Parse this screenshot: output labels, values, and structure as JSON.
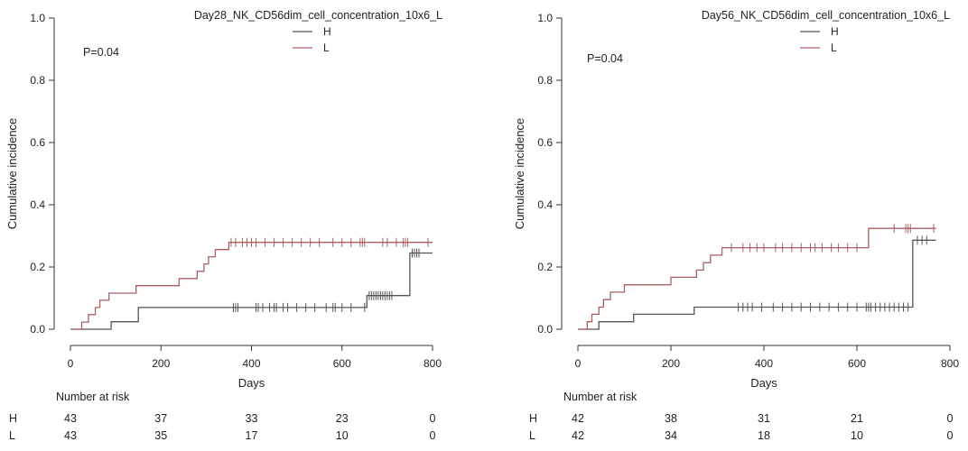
{
  "chart_data": [
    {
      "type": "line",
      "title": "Day28_NK_CD56dim_cell_concentration_10x6_L",
      "xlabel": "Days",
      "ylabel": "Cumulative incidence",
      "xlim": [
        0,
        800
      ],
      "ylim": [
        0,
        1.0
      ],
      "xticks": [
        0,
        200,
        400,
        600,
        800
      ],
      "yticks": [
        0.0,
        0.2,
        0.4,
        0.6,
        0.8,
        1.0
      ],
      "xtick_labels": [
        "0",
        "200",
        "400",
        "600",
        "800"
      ],
      "ytick_labels": [
        "0.0",
        "0.2",
        "0.4",
        "0.6",
        "0.8",
        "1.0"
      ],
      "p_value": "P=0.04",
      "legend": [
        "H",
        "L"
      ],
      "series": [
        {
          "name": "H",
          "color": "#555555",
          "steps": [
            [
              0,
              0
            ],
            [
              90,
              0
            ],
            [
              90,
              0.024
            ],
            [
              150,
              0.024
            ],
            [
              150,
              0.07
            ],
            [
              655,
              0.07
            ],
            [
              655,
              0.108
            ],
            [
              750,
              0.108
            ],
            [
              750,
              0.245
            ],
            [
              800,
              0.245
            ]
          ],
          "censor": [
            360,
            365,
            370,
            410,
            415,
            425,
            440,
            450,
            455,
            470,
            480,
            500,
            520,
            540,
            565,
            580,
            585,
            600,
            620,
            650,
            660,
            665,
            670,
            675,
            680,
            685,
            690,
            695,
            700,
            705,
            710,
            755,
            760,
            765,
            770
          ]
        },
        {
          "name": "L",
          "color": "#a86060",
          "steps": [
            [
              0,
              0
            ],
            [
              25,
              0
            ],
            [
              25,
              0.023
            ],
            [
              40,
              0.023
            ],
            [
              40,
              0.047
            ],
            [
              55,
              0.047
            ],
            [
              55,
              0.07
            ],
            [
              65,
              0.07
            ],
            [
              65,
              0.093
            ],
            [
              85,
              0.093
            ],
            [
              85,
              0.116
            ],
            [
              145,
              0.116
            ],
            [
              145,
              0.14
            ],
            [
              240,
              0.14
            ],
            [
              240,
              0.163
            ],
            [
              280,
              0.163
            ],
            [
              280,
              0.186
            ],
            [
              295,
              0.186
            ],
            [
              295,
              0.21
            ],
            [
              305,
              0.21
            ],
            [
              305,
              0.233
            ],
            [
              320,
              0.233
            ],
            [
              320,
              0.256
            ],
            [
              350,
              0.256
            ],
            [
              350,
              0.279
            ],
            [
              800,
              0.279
            ]
          ],
          "censor": [
            355,
            365,
            380,
            390,
            400,
            410,
            430,
            450,
            470,
            490,
            510,
            530,
            550,
            580,
            600,
            620,
            640,
            645,
            650,
            690,
            700,
            720,
            735,
            740,
            745,
            790
          ]
        }
      ],
      "risk_table": {
        "label": "Number at risk",
        "times": [
          0,
          200,
          400,
          600,
          800
        ],
        "rows": [
          {
            "group": "H",
            "counts": [
              "43",
              "37",
              "33",
              "23",
              "0"
            ]
          },
          {
            "group": "L",
            "counts": [
              "43",
              "35",
              "17",
              "10",
              "0"
            ]
          }
        ]
      }
    },
    {
      "type": "line",
      "title": "Day56_NK_CD56dim_cell_concentration_10x6_L",
      "xlabel": "Days",
      "ylabel": "Cumulative incidence",
      "xlim": [
        0,
        800
      ],
      "ylim": [
        0,
        1.0
      ],
      "xticks": [
        0,
        200,
        400,
        600,
        800
      ],
      "yticks": [
        0.0,
        0.2,
        0.4,
        0.6,
        0.8,
        1.0
      ],
      "xtick_labels": [
        "0",
        "200",
        "400",
        "600",
        "800"
      ],
      "ytick_labels": [
        "0.0",
        "0.2",
        "0.4",
        "0.6",
        "0.8",
        "1.0"
      ],
      "p_value": "P=0.04",
      "legend": [
        "H",
        "L"
      ],
      "series": [
        {
          "name": "H",
          "color": "#555555",
          "steps": [
            [
              0,
              0
            ],
            [
              45,
              0
            ],
            [
              45,
              0.024
            ],
            [
              120,
              0.024
            ],
            [
              120,
              0.048
            ],
            [
              250,
              0.048
            ],
            [
              250,
              0.071
            ],
            [
              720,
              0.071
            ],
            [
              720,
              0.286
            ],
            [
              770,
              0.286
            ]
          ],
          "censor": [
            345,
            355,
            365,
            375,
            395,
            420,
            440,
            460,
            480,
            500,
            520,
            540,
            560,
            580,
            600,
            620,
            625,
            630,
            640,
            650,
            660,
            670,
            680,
            690,
            700,
            710,
            730,
            740,
            750
          ]
        },
        {
          "name": "L",
          "color": "#a86060",
          "steps": [
            [
              0,
              0
            ],
            [
              20,
              0
            ],
            [
              20,
              0.024
            ],
            [
              30,
              0.024
            ],
            [
              30,
              0.048
            ],
            [
              45,
              0.048
            ],
            [
              45,
              0.071
            ],
            [
              55,
              0.071
            ],
            [
              55,
              0.095
            ],
            [
              70,
              0.095
            ],
            [
              70,
              0.119
            ],
            [
              100,
              0.119
            ],
            [
              100,
              0.143
            ],
            [
              200,
              0.143
            ],
            [
              200,
              0.167
            ],
            [
              255,
              0.167
            ],
            [
              255,
              0.19
            ],
            [
              270,
              0.19
            ],
            [
              270,
              0.214
            ],
            [
              285,
              0.214
            ],
            [
              285,
              0.238
            ],
            [
              310,
              0.238
            ],
            [
              310,
              0.262
            ],
            [
              625,
              0.262
            ],
            [
              625,
              0.324
            ],
            [
              770,
              0.324
            ]
          ],
          "censor": [
            330,
            355,
            370,
            385,
            400,
            425,
            440,
            460,
            480,
            500,
            510,
            525,
            545,
            560,
            580,
            600,
            680,
            705,
            710,
            715,
            765
          ]
        }
      ],
      "risk_table": {
        "label": "Number at risk",
        "times": [
          0,
          200,
          400,
          600,
          800
        ],
        "rows": [
          {
            "group": "H",
            "counts": [
              "42",
              "38",
              "31",
              "21",
              "0"
            ]
          },
          {
            "group": "L",
            "counts": [
              "42",
              "34",
              "18",
              "10",
              "0"
            ]
          }
        ]
      }
    }
  ]
}
